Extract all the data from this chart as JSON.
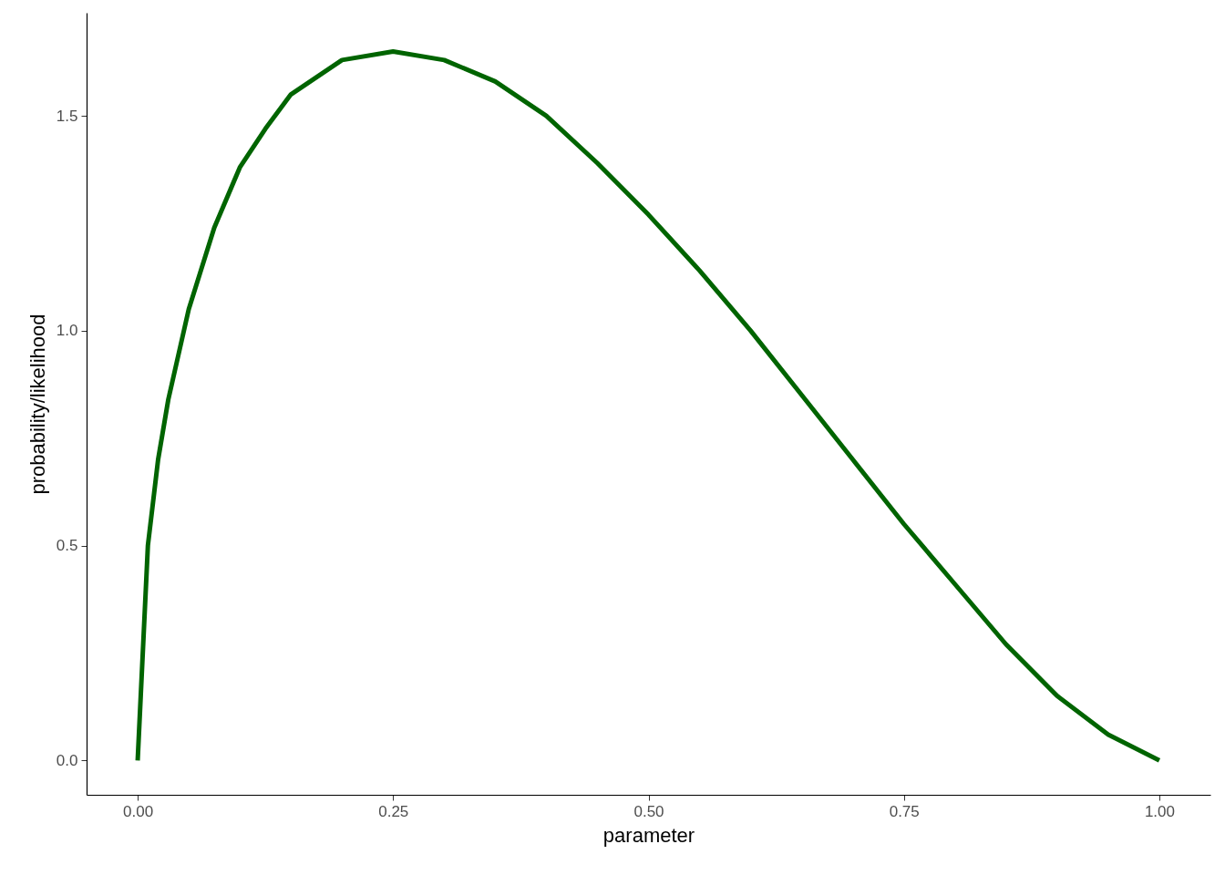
{
  "chart_data": {
    "type": "line",
    "xlabel": "parameter",
    "ylabel": "probability/likelihood",
    "x": [
      0,
      0.01,
      0.02,
      0.03,
      0.05,
      0.075,
      0.1,
      0.125,
      0.15,
      0.2,
      0.25,
      0.3,
      0.35,
      0.4,
      0.45,
      0.5,
      0.55,
      0.6,
      0.65,
      0.7,
      0.75,
      0.8,
      0.85,
      0.9,
      0.95,
      1
    ],
    "series": [
      {
        "color": "#006400",
        "values": [
          0,
          0.5,
          0.7,
          0.84,
          1.05,
          1.24,
          1.38,
          1.47,
          1.55,
          1.63,
          1.65,
          1.63,
          1.58,
          1.5,
          1.39,
          1.27,
          1.14,
          1,
          0.85,
          0.7,
          0.55,
          0.41,
          0.27,
          0.15,
          0.06,
          0
        ]
      }
    ],
    "xlim": [
      -0.05,
      1.05
    ],
    "ylim": [
      -0.08,
      1.74
    ],
    "xticks": [
      {
        "value": 0,
        "label": "0.00"
      },
      {
        "value": 0.25,
        "label": "0.25"
      },
      {
        "value": 0.5,
        "label": "0.50"
      },
      {
        "value": 0.75,
        "label": "0.75"
      },
      {
        "value": 1,
        "label": "1.00"
      }
    ],
    "yticks": [
      {
        "value": 0,
        "label": "0.0"
      },
      {
        "value": 0.5,
        "label": "0.5"
      },
      {
        "value": 1,
        "label": "1.0"
      },
      {
        "value": 1.5,
        "label": "1.5"
      }
    ]
  }
}
